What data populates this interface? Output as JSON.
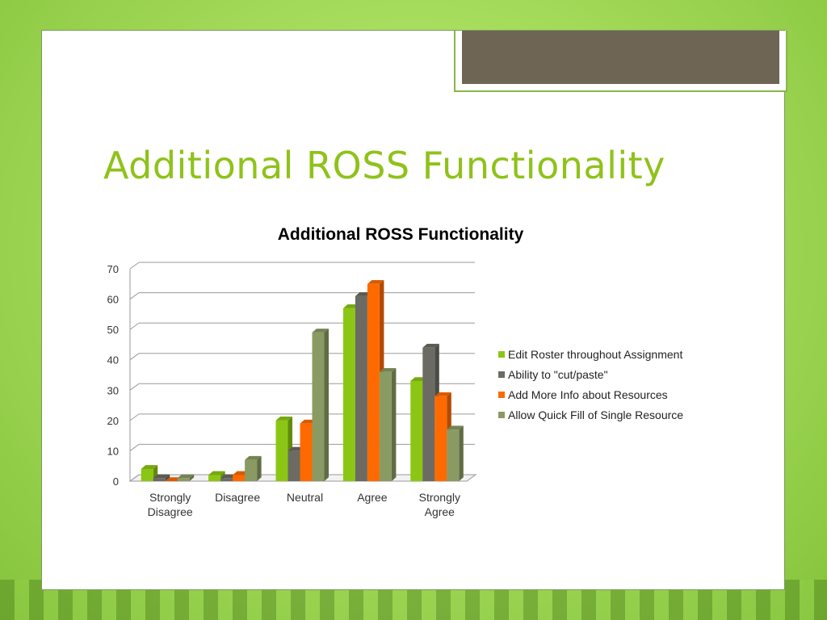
{
  "slide": {
    "title": "Additional ROSS Functionality"
  },
  "chart_data": {
    "type": "bar",
    "title": "Additional ROSS Functionality",
    "categories": [
      "Strongly Disagree",
      "Disagree",
      "Neutral",
      "Agree",
      "Strongly Agree"
    ],
    "category_lines": [
      [
        "Strongly",
        "Disagree"
      ],
      [
        "Disagree"
      ],
      [
        "Neutral"
      ],
      [
        "Agree"
      ],
      [
        "Strongly",
        "Agree"
      ]
    ],
    "series": [
      {
        "name": "Edit Roster throughout Assignment",
        "values": [
          4,
          2,
          20,
          57,
          33
        ],
        "color": "#8cc614"
      },
      {
        "name": "Ability to \"cut/paste\"",
        "values": [
          1,
          1,
          10,
          61,
          44
        ],
        "color": "#6b6b63"
      },
      {
        "name": "Add More Info about Resources",
        "values": [
          0,
          2,
          19,
          65,
          28
        ],
        "color": "#ff6a00"
      },
      {
        "name": "Allow Quick Fill of Single Resource",
        "values": [
          1,
          7,
          49,
          36,
          17
        ],
        "color": "#8a9a63"
      }
    ],
    "yticks": [
      0,
      10,
      20,
      30,
      40,
      50,
      60,
      70
    ],
    "ylim": [
      0,
      70
    ],
    "grid": true,
    "legend": "right",
    "style": "3d-clustered-column"
  }
}
